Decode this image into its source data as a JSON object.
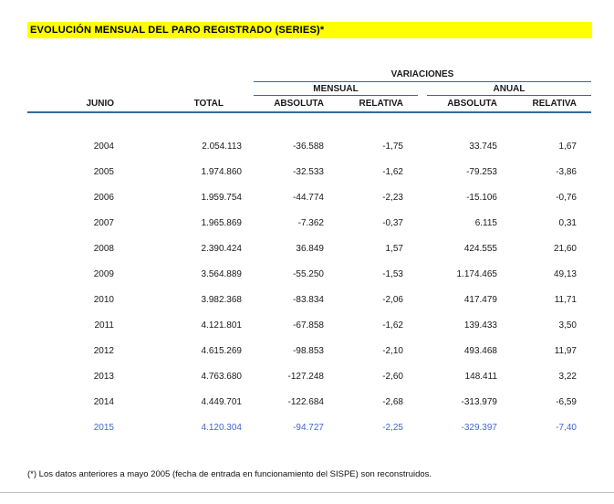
{
  "title": "EVOLUCIÓN MENSUAL DEL PARO REGISTRADO (SERIES)*",
  "colors": {
    "title_background": "#ffff00",
    "rule_blue": "#36689e",
    "highlight_row_text": "#4466cc"
  },
  "table": {
    "group_header": "VARIACIONES",
    "subgroups": {
      "mensual": "MENSUAL",
      "anual": "ANUAL"
    },
    "columns": [
      "JUNIO",
      "TOTAL",
      "ABSOLUTA",
      "RELATIVA",
      "ABSOLUTA",
      "RELATIVA"
    ],
    "rows": [
      {
        "year": "2004",
        "total": "2.054.113",
        "mensual_abs": "-36.588",
        "mensual_rel": "-1,75",
        "anual_abs": "33.745",
        "anual_rel": "1,67",
        "highlight": false
      },
      {
        "year": "2005",
        "total": "1.974.860",
        "mensual_abs": "-32.533",
        "mensual_rel": "-1,62",
        "anual_abs": "-79.253",
        "anual_rel": "-3,86",
        "highlight": false
      },
      {
        "year": "2006",
        "total": "1.959.754",
        "mensual_abs": "-44.774",
        "mensual_rel": "-2,23",
        "anual_abs": "-15.106",
        "anual_rel": "-0,76",
        "highlight": false
      },
      {
        "year": "2007",
        "total": "1.965.869",
        "mensual_abs": "-7.362",
        "mensual_rel": "-0,37",
        "anual_abs": "6.115",
        "anual_rel": "0,31",
        "highlight": false
      },
      {
        "year": "2008",
        "total": "2.390.424",
        "mensual_abs": "36.849",
        "mensual_rel": "1,57",
        "anual_abs": "424.555",
        "anual_rel": "21,60",
        "highlight": false
      },
      {
        "year": "2009",
        "total": "3.564.889",
        "mensual_abs": "-55.250",
        "mensual_rel": "-1,53",
        "anual_abs": "1.174.465",
        "anual_rel": "49,13",
        "highlight": false
      },
      {
        "year": "2010",
        "total": "3.982.368",
        "mensual_abs": "-83.834",
        "mensual_rel": "-2,06",
        "anual_abs": "417.479",
        "anual_rel": "11,71",
        "highlight": false
      },
      {
        "year": "2011",
        "total": "4.121.801",
        "mensual_abs": "-67.858",
        "mensual_rel": "-1,62",
        "anual_abs": "139.433",
        "anual_rel": "3,50",
        "highlight": false
      },
      {
        "year": "2012",
        "total": "4.615.269",
        "mensual_abs": "-98.853",
        "mensual_rel": "-2,10",
        "anual_abs": "493.468",
        "anual_rel": "11,97",
        "highlight": false
      },
      {
        "year": "2013",
        "total": "4.763.680",
        "mensual_abs": "-127.248",
        "mensual_rel": "-2,60",
        "anual_abs": "148.411",
        "anual_rel": "3,22",
        "highlight": false
      },
      {
        "year": "2014",
        "total": "4.449.701",
        "mensual_abs": "-122.684",
        "mensual_rel": "-2,68",
        "anual_abs": "-313.979",
        "anual_rel": "-6,59",
        "highlight": false
      },
      {
        "year": "2015",
        "total": "4.120.304",
        "mensual_abs": "-94.727",
        "mensual_rel": "-2,25",
        "anual_abs": "-329.397",
        "anual_rel": "-7,40",
        "highlight": true
      }
    ]
  },
  "footnote": "(*) Los datos anteriores a mayo 2005 (fecha de entrada en funcionamiento del SISPE) son reconstruidos."
}
